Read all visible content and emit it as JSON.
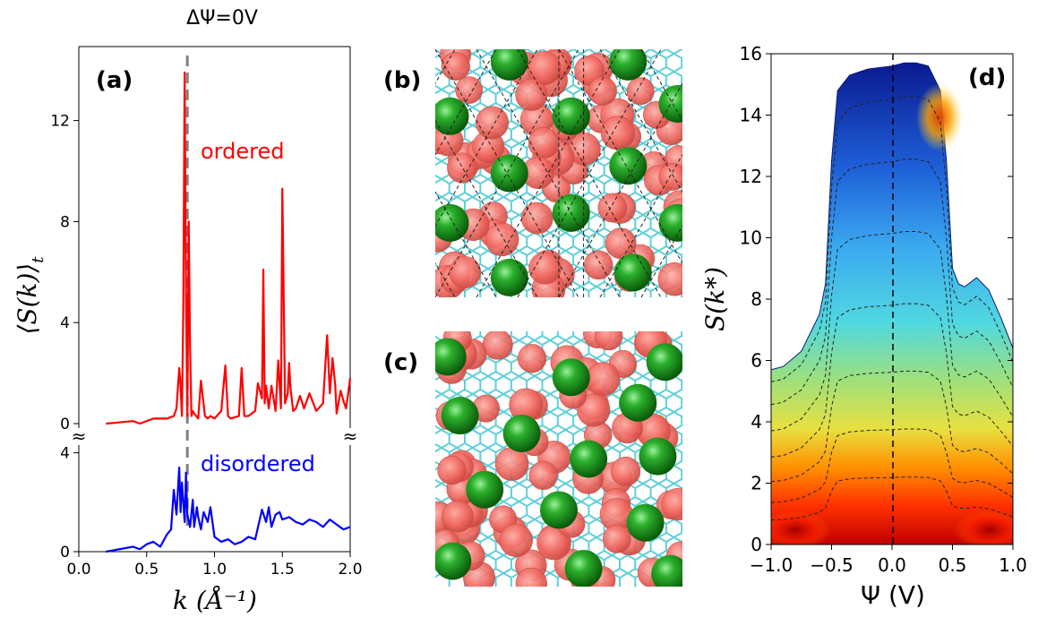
{
  "header": "ΔΨ=0V",
  "panels": {
    "a": "(a)",
    "b": "(b)",
    "c": "(c)",
    "d": "(d)"
  },
  "labels": {
    "ordered": "ordered",
    "disordered": "disordered"
  },
  "colors": {
    "ordered": "#ff0000",
    "disordered": "#0000ff",
    "peak_line": "#808080",
    "green": "#1a9a1a",
    "red": "#f06a62",
    "cyan": "#5ecfd8"
  },
  "chart_data": [
    {
      "type": "line",
      "panel": "(a) top",
      "series": [
        {
          "name": "ordered",
          "color": "#ff0000",
          "x": [
            0.2,
            0.4,
            0.45,
            0.55,
            0.65,
            0.7,
            0.72,
            0.74,
            0.75,
            0.76,
            0.77,
            0.78,
            0.79,
            0.8,
            0.81,
            0.82,
            0.83,
            0.84,
            0.85,
            0.88,
            0.9,
            0.93,
            0.95,
            0.97,
            1.0,
            1.05,
            1.08,
            1.1,
            1.12,
            1.18,
            1.2,
            1.22,
            1.25,
            1.3,
            1.32,
            1.35,
            1.36,
            1.37,
            1.38,
            1.4,
            1.42,
            1.45,
            1.47,
            1.49,
            1.5,
            1.52,
            1.54,
            1.55,
            1.56,
            1.58,
            1.6,
            1.63,
            1.66,
            1.7,
            1.75,
            1.8,
            1.83,
            1.85,
            1.87,
            1.89,
            1.9,
            1.93,
            1.95,
            1.97,
            2.0
          ],
          "y": [
            0,
            0.1,
            0,
            0.2,
            0.2,
            0.3,
            0.6,
            2.2,
            1.5,
            0.3,
            4.5,
            13.9,
            5,
            0.3,
            8,
            3,
            0.3,
            0.5,
            0.4,
            0.2,
            1.7,
            0.3,
            0.2,
            0.3,
            0.2,
            0.5,
            2.3,
            0.3,
            0.2,
            0.3,
            2.2,
            0.3,
            0.3,
            0.5,
            1.6,
            1.0,
            6.1,
            0.8,
            1.5,
            0.6,
            1.5,
            0.5,
            2.5,
            0.6,
            9.3,
            0.8,
            1.2,
            2.4,
            1.4,
            0.5,
            0.6,
            1.1,
            0.6,
            1.2,
            0.5,
            0.8,
            3.5,
            1.2,
            2.6,
            1.5,
            0.4,
            1.3,
            0.9,
            0.6,
            1.8
          ]
        }
      ],
      "ylim": [
        0,
        15
      ],
      "yticks": [
        "0",
        "4",
        "8",
        "12"
      ],
      "ylabel": "⟨S(k)⟩",
      "ylabel_sub": "t"
    },
    {
      "type": "line",
      "panel": "(a) bottom",
      "series": [
        {
          "name": "disordered",
          "color": "#0000ff",
          "x": [
            0.2,
            0.3,
            0.4,
            0.45,
            0.5,
            0.55,
            0.6,
            0.65,
            0.68,
            0.7,
            0.72,
            0.74,
            0.75,
            0.76,
            0.77,
            0.78,
            0.79,
            0.8,
            0.82,
            0.84,
            0.85,
            0.87,
            0.88,
            0.9,
            0.92,
            0.95,
            0.97,
            1.0,
            1.05,
            1.1,
            1.15,
            1.2,
            1.25,
            1.3,
            1.35,
            1.38,
            1.4,
            1.42,
            1.45,
            1.48,
            1.5,
            1.55,
            1.6,
            1.65,
            1.7,
            1.75,
            1.8,
            1.85,
            1.9,
            1.95,
            2.0
          ],
          "y": [
            0,
            0.1,
            0.2,
            0.1,
            0.3,
            0.4,
            0.2,
            0.7,
            0.9,
            2.5,
            1.5,
            3.4,
            1.6,
            2.8,
            2.0,
            1.2,
            3.2,
            1.5,
            1.0,
            2.1,
            1.0,
            1.8,
            1.4,
            0.9,
            1.6,
            1.2,
            1.8,
            0.6,
            0.4,
            0.5,
            0.3,
            0.4,
            0.6,
            0.5,
            1.7,
            1.2,
            1.8,
            1.0,
            1.5,
            1.6,
            1.3,
            1.4,
            1.2,
            1.1,
            1.3,
            1.2,
            1.0,
            1.3,
            1.1,
            0.9,
            1.0
          ]
        }
      ],
      "xlim": [
        0.0,
        2.0
      ],
      "ylim": [
        0,
        4.6
      ],
      "xticks": [
        "0.0",
        "0.5",
        "1.0",
        "1.5",
        "2.0"
      ],
      "yticks": [
        "0",
        "4"
      ],
      "xlabel": "k (Å⁻¹)",
      "peak_line_k": 0.8
    },
    {
      "type": "heatmap",
      "panel": "(d)",
      "xlim": [
        -1.0,
        1.0
      ],
      "ylim": [
        0,
        16
      ],
      "xticks": [
        "−1.0",
        "−0.5",
        "0.0",
        "0.5",
        "1.0"
      ],
      "yticks": [
        "0",
        "2",
        "4",
        "6",
        "8",
        "10",
        "12",
        "14",
        "16"
      ],
      "xlabel": "Ψ   (V)",
      "ylabel": "S(k*)",
      "envelope_psi": [
        -1.0,
        -0.9,
        -0.75,
        -0.6,
        -0.55,
        -0.5,
        -0.45,
        -0.35,
        -0.2,
        0.0,
        0.1,
        0.2,
        0.3,
        0.4,
        0.45,
        0.5,
        0.55,
        0.6,
        0.7,
        0.8,
        0.9,
        1.0
      ],
      "envelope_smax": [
        5.7,
        5.8,
        6.3,
        7.5,
        8.5,
        12.5,
        14.8,
        15.3,
        15.5,
        15.6,
        15.7,
        15.7,
        15.6,
        14.8,
        12.5,
        9.0,
        8.5,
        8.4,
        8.7,
        8.3,
        7.4,
        6.4
      ]
    }
  ]
}
